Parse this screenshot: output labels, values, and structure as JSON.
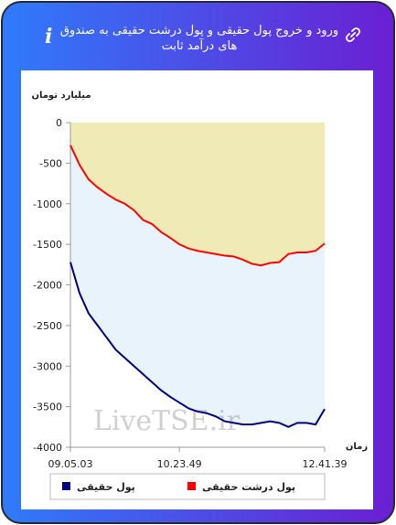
{
  "header": {
    "title": "ورود و خروج پول حقیقی و پول درشت حقیقی به صندوق های درآمد ثابت",
    "info_icon": "i"
  },
  "chart_data": {
    "type": "line",
    "y_label": "میلیارد تومان",
    "x_label": "زمان",
    "watermark": "LiveTSE.ir",
    "categories": [
      "09.05.03",
      null,
      null,
      null,
      null,
      null,
      null,
      null,
      null,
      null,
      null,
      null,
      "10.23.49",
      null,
      null,
      null,
      null,
      null,
      null,
      null,
      null,
      null,
      null,
      null,
      null,
      null,
      null,
      null,
      "12.41.39"
    ],
    "series": [
      {
        "name": "پول درشت حقیقی",
        "color": "#ff0000",
        "values": [
          -280,
          -520,
          -700,
          -800,
          -880,
          -950,
          -1000,
          -1080,
          -1200,
          -1250,
          -1350,
          -1420,
          -1500,
          -1550,
          -1580,
          -1600,
          -1620,
          -1640,
          -1650,
          -1690,
          -1740,
          -1760,
          -1730,
          -1720,
          -1620,
          -1600,
          -1600,
          -1580,
          -1490
        ]
      },
      {
        "name": "پول حقیقی",
        "color": "#000080",
        "values": [
          -1720,
          -2100,
          -2350,
          -2500,
          -2650,
          -2800,
          -2900,
          -3000,
          -3100,
          -3200,
          -3300,
          -3380,
          -3450,
          -3520,
          -3560,
          -3580,
          -3620,
          -3680,
          -3700,
          -3720,
          -3720,
          -3700,
          -3680,
          -3700,
          -3750,
          -3700,
          -3700,
          -3720,
          -3530
        ]
      }
    ],
    "ylim": [
      -4000,
      0
    ],
    "yticks": [
      0,
      -500,
      -1000,
      -1500,
      -2000,
      -2500,
      -3000,
      -3500,
      -4000
    ]
  }
}
